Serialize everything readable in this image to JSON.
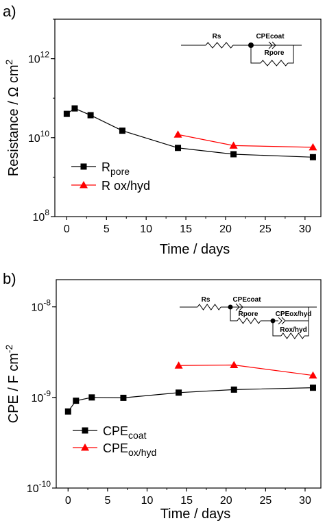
{
  "colors": {
    "black": "#000000",
    "red": "#ff0000"
  },
  "chart_data": [
    {
      "panel_label": "a)",
      "type": "line",
      "xlabel": "Time / days",
      "ylabel": "Resistance / Ω cm",
      "ylabel_sup": "2",
      "yscale": "log",
      "xlim": [
        -1.5,
        32
      ],
      "ylim_exp": [
        8,
        13
      ],
      "xticks": [
        "0",
        "5",
        "10",
        "15",
        "20",
        "25",
        "30"
      ],
      "yticks": [
        {
          "base": "10",
          "exp": "8"
        },
        {
          "base": "10",
          "exp": "10"
        },
        {
          "base": "10",
          "exp": "12"
        }
      ],
      "series": [
        {
          "legend_main": "R",
          "legend_sub": "pore",
          "marker": "square",
          "color": "#000000",
          "x": [
            0,
            1,
            3,
            7,
            14,
            21,
            31
          ],
          "y": [
            40000000000,
            55000000000,
            37000000000,
            15000000000,
            5500000000,
            3800000000,
            3200000000
          ]
        },
        {
          "legend_main": "R ox/hyd",
          "legend_sub": "",
          "marker": "triangle",
          "color": "#ff0000",
          "x": [
            14,
            21,
            31
          ],
          "y": [
            12000000000,
            6300000000,
            5700000000
          ]
        }
      ],
      "legend_position": "lower-left",
      "circuit": {
        "rs": "Rs",
        "cpe": "CPEcoat",
        "rpore": "Rpore"
      }
    },
    {
      "panel_label": "b)",
      "type": "line",
      "xlabel": "Time / days",
      "ylabel": "CPE / F cm",
      "ylabel_sup": "-2",
      "yscale": "log",
      "xlim": [
        -1.5,
        32
      ],
      "ylim_exp": [
        -10,
        -7.7
      ],
      "xticks": [
        "0",
        "5",
        "10",
        "15",
        "20",
        "25",
        "30"
      ],
      "yticks": [
        {
          "base": "10",
          "exp": "-10"
        },
        {
          "base": "10",
          "exp": "-9"
        },
        {
          "base": "10",
          "exp": "-8"
        }
      ],
      "series": [
        {
          "legend_main": "CPE",
          "legend_sub": "coat",
          "marker": "square",
          "color": "#000000",
          "x": [
            0,
            1,
            3,
            7,
            14,
            21,
            31
          ],
          "y": [
            7e-10,
            9.2e-10,
            1e-09,
            9.9e-10,
            1.13e-09,
            1.22e-09,
            1.28e-09
          ]
        },
        {
          "legend_main": "CPE",
          "legend_sub": "ox/hyd",
          "marker": "triangle",
          "color": "#ff0000",
          "x": [
            14,
            21,
            31
          ],
          "y": [
            2.25e-09,
            2.28e-09,
            1.75e-09
          ]
        }
      ],
      "legend_position": "lower-left",
      "circuit": {
        "rs": "Rs",
        "cpe": "CPEcoat",
        "rpore": "Rpore",
        "cpe2": "CPEox/hyd",
        "rox": "Rox/hyd"
      }
    }
  ]
}
